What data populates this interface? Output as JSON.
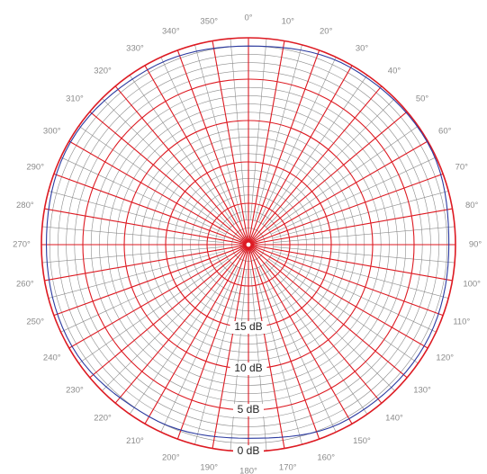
{
  "chart_data": {
    "type": "polar",
    "title": "",
    "angle_labels": [
      "0°",
      "10°",
      "20°",
      "30°",
      "40°",
      "50°",
      "60°",
      "70°",
      "80°",
      "90°",
      "100°",
      "110°",
      "120°",
      "130°",
      "140°",
      "150°",
      "160°",
      "170°",
      "180°",
      "190°",
      "200°",
      "210°",
      "220°",
      "230°",
      "240°",
      "250°",
      "260°",
      "270°",
      "280°",
      "290°",
      "300°",
      "310°",
      "320°",
      "330°",
      "340°",
      "350°"
    ],
    "angle_direction": "clockwise from top",
    "radial_axis": {
      "unit": "dB",
      "range": [
        -25,
        0
      ],
      "labels": [
        {
          "value": 0,
          "text": "0 dB"
        },
        {
          "value": -5,
          "text": "5 dB"
        },
        {
          "value": -10,
          "text": "10 dB"
        },
        {
          "value": -15,
          "text": "15 dB"
        }
      ],
      "major_step": 5,
      "minor_step": 1
    },
    "grid": true,
    "series": [
      {
        "color": "#2b3aa0",
        "angles": [
          0,
          30,
          60,
          90,
          120,
          150,
          180,
          210,
          240,
          270,
          300,
          330,
          360
        ],
        "values": [
          -1.0,
          -0.3,
          -0.1,
          -0.8,
          -0.5,
          -0.7,
          -1.6,
          -1.0,
          -0.4,
          -0.6,
          -0.2,
          -0.6,
          -1.0
        ]
      }
    ],
    "colors": {
      "major_grid": "#dd1a22",
      "minor_grid": "#8c8c8c",
      "angle_label": "#8a8a8a",
      "db_label": "#222222",
      "series": "#2b3aa0"
    }
  }
}
